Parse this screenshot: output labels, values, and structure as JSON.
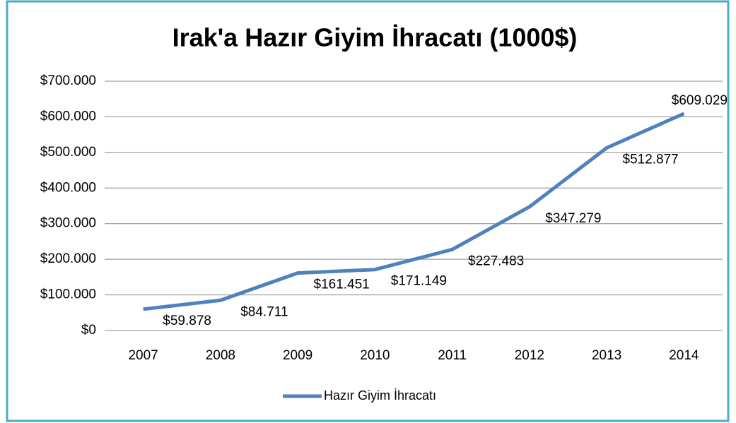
{
  "chart_data": {
    "type": "line",
    "title": "Irak'a Hazır Giyim İhracatı (1000$)",
    "categories": [
      "2007",
      "2008",
      "2009",
      "2010",
      "2011",
      "2012",
      "2013",
      "2014"
    ],
    "series": [
      {
        "name": "Hazır Giyim İhracatı",
        "color": "#4f81bd",
        "values": [
          59878,
          84711,
          161451,
          171149,
          227483,
          347279,
          512877,
          609029
        ],
        "value_labels": [
          "$59.878",
          "$84.711",
          "$161.451",
          "$171.149",
          "$227.483",
          "$347.279",
          "$512.877",
          "$609.029"
        ]
      }
    ],
    "ylim": [
      0,
      700000
    ],
    "yticks": [
      {
        "value": 0,
        "label": "$0"
      },
      {
        "value": 100000,
        "label": "$100.000"
      },
      {
        "value": 200000,
        "label": "$200.000"
      },
      {
        "value": 300000,
        "label": "$300.000"
      },
      {
        "value": 400000,
        "label": "$400.000"
      },
      {
        "value": 500000,
        "label": "$500.000"
      },
      {
        "value": 600000,
        "label": "$600.000"
      },
      {
        "value": 700000,
        "label": "$700.000"
      }
    ],
    "grid": true,
    "legend": "bottom"
  }
}
